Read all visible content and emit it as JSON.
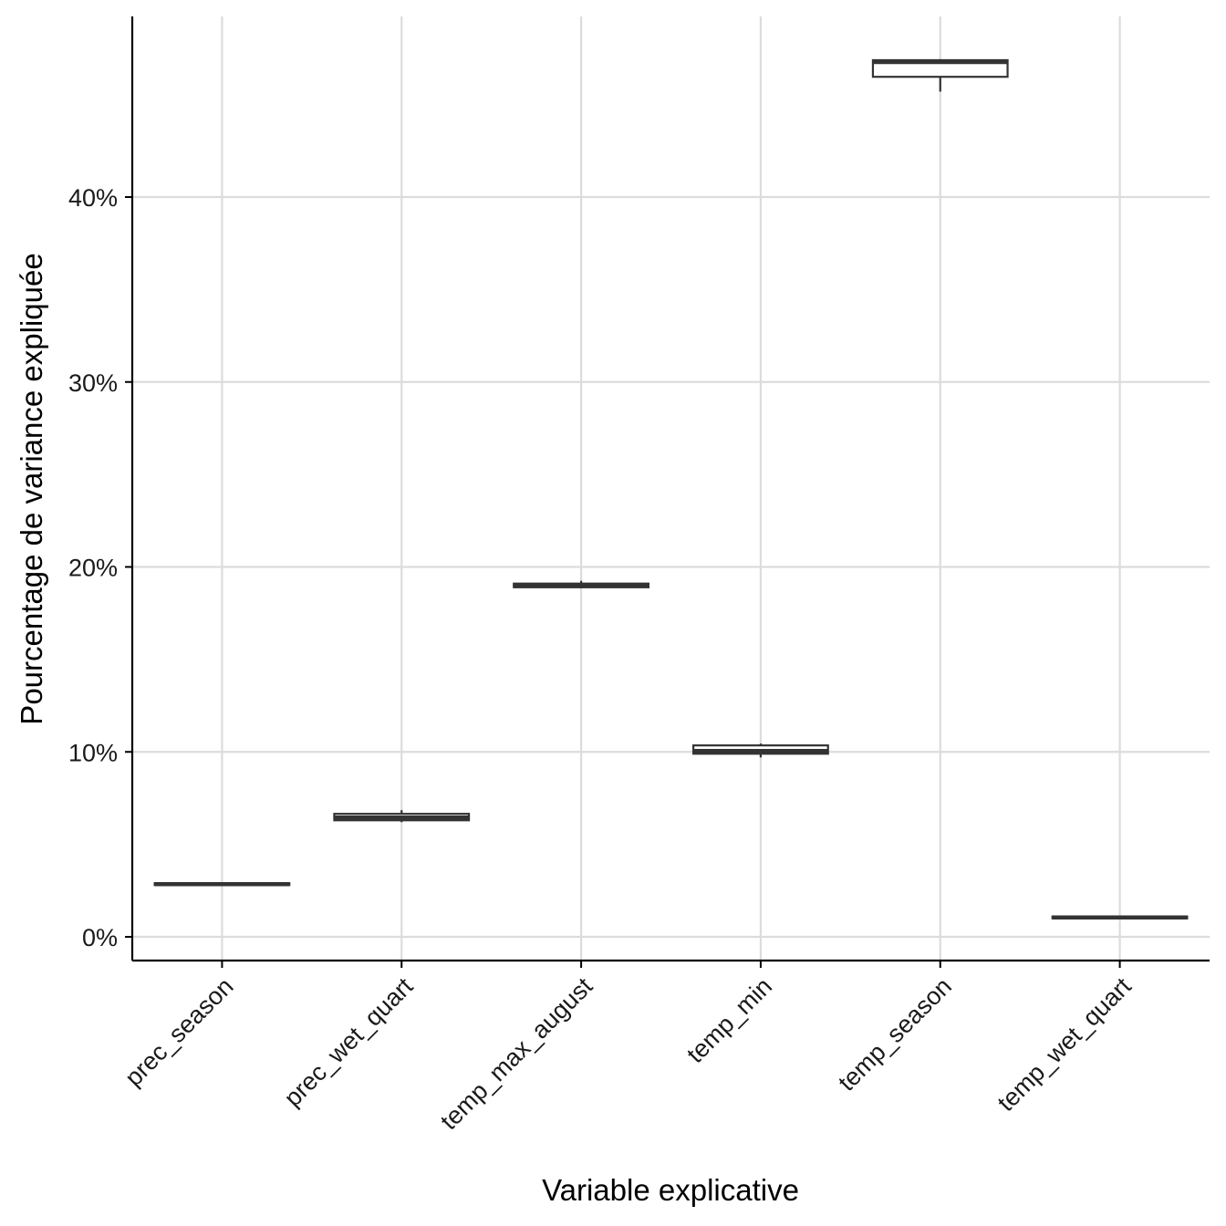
{
  "chart_data": {
    "type": "boxplot",
    "title": "",
    "xlabel": "Variable explicative",
    "ylabel": "Pourcentage de variance expliquée",
    "ylim": [
      -1.3,
      49.8
    ],
    "y_ticks": [
      0,
      10,
      20,
      30,
      40
    ],
    "y_tick_labels": [
      "0%",
      "10%",
      "20%",
      "30%",
      "40%"
    ],
    "grid": true,
    "legend": "none",
    "categories": [
      "prec_season",
      "prec_wet_quart",
      "temp_max_august",
      "temp_min",
      "temp_season",
      "temp_wet_quart"
    ],
    "boxes": [
      {
        "category": "prec_season",
        "min": 2.75,
        "q1": 2.8,
        "median": 2.85,
        "q3": 2.9,
        "max": 2.95
      },
      {
        "category": "prec_wet_quart",
        "min": 6.2,
        "q1": 6.3,
        "median": 6.45,
        "q3": 6.65,
        "max": 6.85
      },
      {
        "category": "temp_max_august",
        "min": 18.85,
        "q1": 18.9,
        "median": 19.0,
        "q3": 19.1,
        "max": 19.25
      },
      {
        "category": "temp_min",
        "min": 9.7,
        "q1": 9.9,
        "median": 10.05,
        "q3": 10.35,
        "max": 10.45
      },
      {
        "category": "temp_season",
        "min": 45.7,
        "q1": 46.5,
        "median": 47.3,
        "q3": 47.4,
        "max": 47.45
      },
      {
        "category": "temp_wet_quart",
        "min": 0.95,
        "q1": 1.0,
        "median": 1.05,
        "q3": 1.1,
        "max": 1.15
      }
    ],
    "colors": {
      "box_stroke": "#333333",
      "box_fill": "#ffffff",
      "grid": "#dcdcdc",
      "axis": "#000000"
    }
  }
}
